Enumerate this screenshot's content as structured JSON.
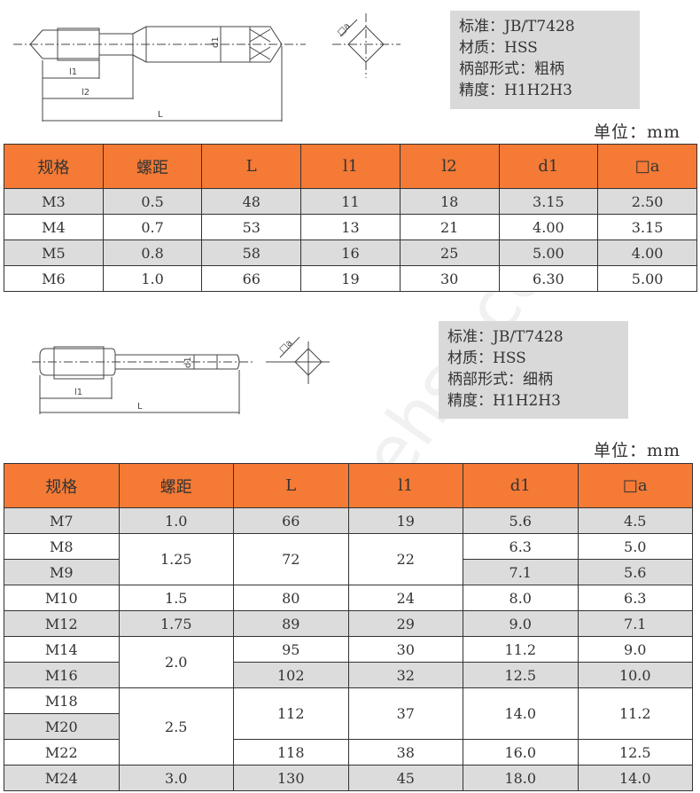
{
  "watermark": "www.ehsy.com",
  "section1": {
    "drawing_labels": {
      "l1": "l1",
      "l2": "l2",
      "L": "L",
      "d1": "d1",
      "a": "□a"
    },
    "info": [
      "标准：JB/T7428",
      "材质：HSS",
      "柄部形式：粗柄",
      "精度：H1H2H3"
    ],
    "unit": "单位：mm",
    "headers": [
      "规格",
      "螺距",
      "L",
      "l1",
      "l2",
      "d1",
      "□a"
    ],
    "rows": [
      {
        "bg": "g",
        "cells": [
          {
            "v": "M3"
          },
          {
            "v": "0.5"
          },
          {
            "v": "48"
          },
          {
            "v": "11"
          },
          {
            "v": "18"
          },
          {
            "v": "3.15"
          },
          {
            "v": "2.50"
          }
        ]
      },
      {
        "bg": "w",
        "cells": [
          {
            "v": "M4"
          },
          {
            "v": "0.7"
          },
          {
            "v": "53"
          },
          {
            "v": "13"
          },
          {
            "v": "21"
          },
          {
            "v": "4.00"
          },
          {
            "v": "3.15"
          }
        ]
      },
      {
        "bg": "g",
        "cells": [
          {
            "v": "M5"
          },
          {
            "v": "0.8"
          },
          {
            "v": "58"
          },
          {
            "v": "16"
          },
          {
            "v": "25"
          },
          {
            "v": "5.00"
          },
          {
            "v": "4.00"
          }
        ]
      },
      {
        "bg": "w",
        "cells": [
          {
            "v": "M6"
          },
          {
            "v": "1.0"
          },
          {
            "v": "66"
          },
          {
            "v": "19"
          },
          {
            "v": "30"
          },
          {
            "v": "6.30"
          },
          {
            "v": "5.00"
          }
        ]
      }
    ]
  },
  "section2": {
    "drawing_labels": {
      "l1": "l1",
      "L": "L",
      "d1": "d1",
      "a": "□a"
    },
    "info": [
      "标准：JB/T7428",
      "材质：HSS",
      "柄部形式：细柄",
      "精度：H1H2H3"
    ],
    "unit": "单位：mm",
    "headers": [
      "规格",
      "螺距",
      "L",
      "l1",
      "d1",
      "□a"
    ],
    "rows": [
      {
        "bg": "g",
        "cells": [
          {
            "v": "M7"
          },
          {
            "v": "1.0"
          },
          {
            "v": "66"
          },
          {
            "v": "19"
          },
          {
            "v": "5.6"
          },
          {
            "v": "4.5"
          }
        ]
      },
      {
        "bg": "w",
        "cells": [
          {
            "v": "M8"
          },
          {
            "v": "1.25",
            "span": 2
          },
          {
            "v": "72",
            "span": 2
          },
          {
            "v": "22",
            "span": 2
          },
          {
            "v": "6.3"
          },
          {
            "v": "5.0"
          }
        ]
      },
      {
        "bg": "g",
        "cells": [
          {
            "v": "M9"
          },
          null,
          null,
          null,
          {
            "v": "7.1"
          },
          {
            "v": "5.6"
          }
        ]
      },
      {
        "bg": "w",
        "cells": [
          {
            "v": "M10"
          },
          {
            "v": "1.5"
          },
          {
            "v": "80"
          },
          {
            "v": "24"
          },
          {
            "v": "8.0"
          },
          {
            "v": "6.3"
          }
        ]
      },
      {
        "bg": "g",
        "cells": [
          {
            "v": "M12"
          },
          {
            "v": "1.75"
          },
          {
            "v": "89"
          },
          {
            "v": "29"
          },
          {
            "v": "9.0"
          },
          {
            "v": "7.1"
          }
        ]
      },
      {
        "bg": "w",
        "cells": [
          {
            "v": "M14"
          },
          {
            "v": "2.0",
            "span": 2
          },
          {
            "v": "95"
          },
          {
            "v": "30"
          },
          {
            "v": "11.2"
          },
          {
            "v": "9.0"
          }
        ]
      },
      {
        "bg": "g",
        "cells": [
          {
            "v": "M16"
          },
          null,
          {
            "v": "102"
          },
          {
            "v": "32"
          },
          {
            "v": "12.5"
          },
          {
            "v": "10.0"
          }
        ]
      },
      {
        "bg": "w",
        "cells": [
          {
            "v": "M18"
          },
          {
            "v": "2.5",
            "span": 3
          },
          {
            "v": "112",
            "span": 2
          },
          {
            "v": "37",
            "span": 2
          },
          {
            "v": "14.0",
            "span": 2
          },
          {
            "v": "11.2",
            "span": 2
          }
        ]
      },
      {
        "bg": "g",
        "cells": [
          {
            "v": "M20"
          },
          null,
          null,
          null,
          null,
          null
        ]
      },
      {
        "bg": "w",
        "cells": [
          {
            "v": "M22"
          },
          null,
          {
            "v": "118"
          },
          {
            "v": "38"
          },
          {
            "v": "16.0"
          },
          {
            "v": "12.5"
          }
        ]
      },
      {
        "bg": "g",
        "cells": [
          {
            "v": "M24"
          },
          {
            "v": "3.0"
          },
          {
            "v": "130"
          },
          {
            "v": "45"
          },
          {
            "v": "18.0"
          },
          {
            "v": "14.0"
          }
        ]
      }
    ]
  }
}
